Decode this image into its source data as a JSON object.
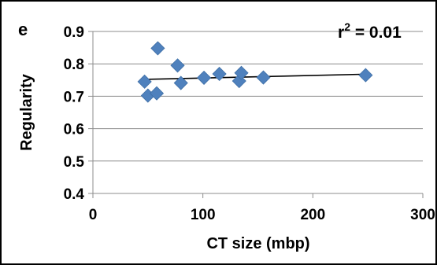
{
  "panel_label": "e",
  "chart_data": {
    "type": "scatter",
    "xlabel": "CT size (mbp)",
    "ylabel": "Regularity",
    "xlim": [
      0,
      300
    ],
    "ylim": [
      0.4,
      0.9
    ],
    "x_ticks": [
      "0",
      "100",
      "200",
      "300"
    ],
    "y_ticks": [
      "0.4",
      "0.5",
      "0.6",
      "0.7",
      "0.8",
      "0.9"
    ],
    "grid": "horizontal",
    "annotation": {
      "base": "r",
      "sup": "2",
      "rest": " = 0.01"
    },
    "marker": "diamond",
    "marker_color": "#4f81bd",
    "trendline_color": "#000000",
    "points": [
      {
        "x": 47,
        "y": 0.745
      },
      {
        "x": 50,
        "y": 0.702
      },
      {
        "x": 58,
        "y": 0.709
      },
      {
        "x": 59,
        "y": 0.848
      },
      {
        "x": 77,
        "y": 0.795
      },
      {
        "x": 80,
        "y": 0.741
      },
      {
        "x": 101,
        "y": 0.757
      },
      {
        "x": 115,
        "y": 0.769
      },
      {
        "x": 133,
        "y": 0.747
      },
      {
        "x": 135,
        "y": 0.772
      },
      {
        "x": 155,
        "y": 0.758
      },
      {
        "x": 248,
        "y": 0.765
      }
    ],
    "trendline": {
      "x": [
        47,
        248
      ],
      "y": [
        0.752,
        0.768
      ]
    }
  }
}
